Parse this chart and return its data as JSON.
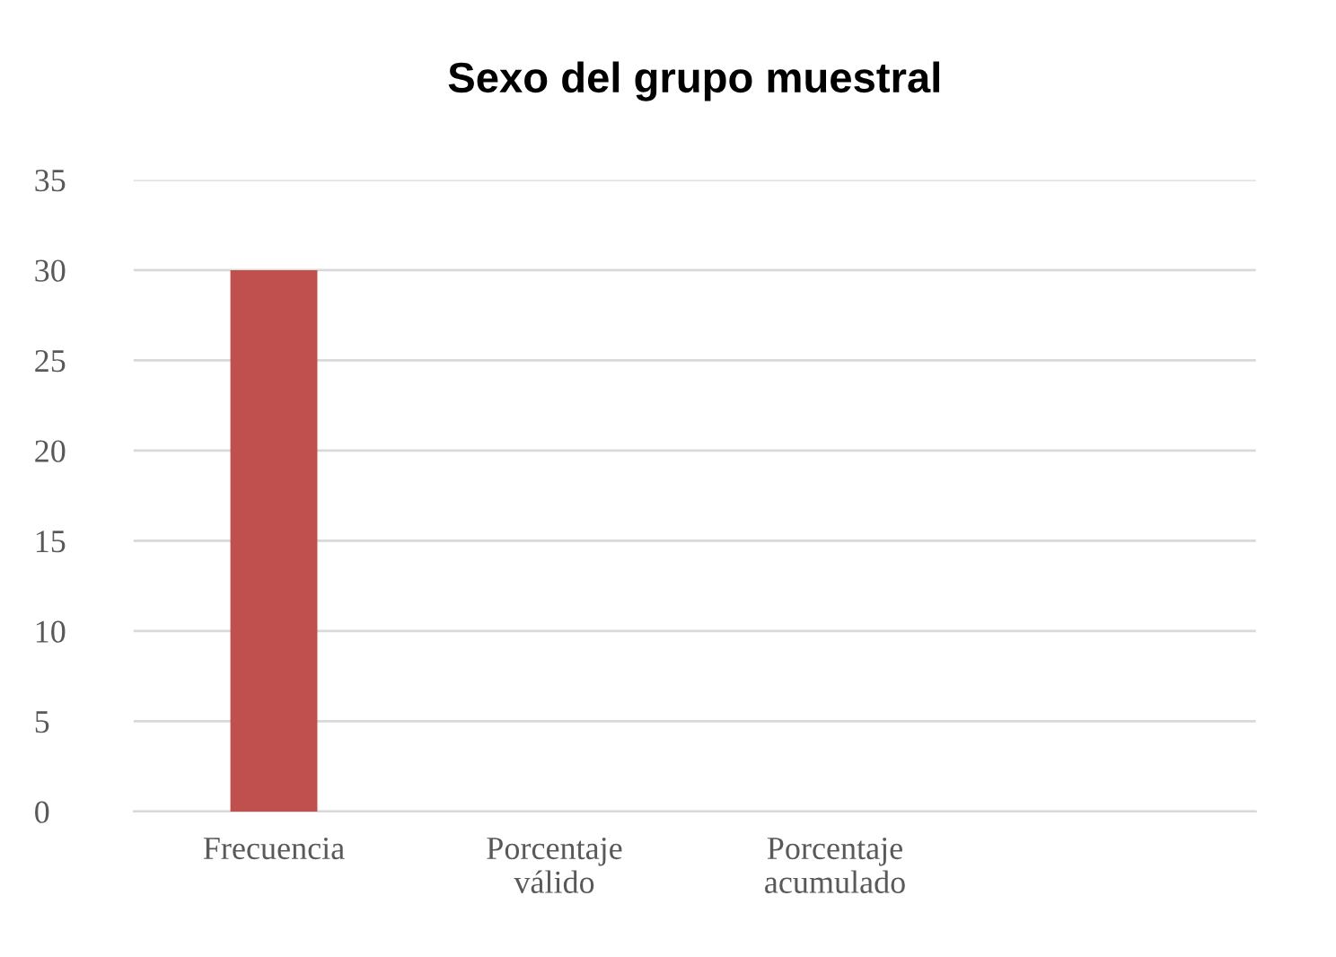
{
  "chart_data": {
    "type": "bar",
    "title": "Sexo del grupo muestral",
    "categories": [
      "Frecuencia",
      "Porcentaje\nválido",
      "Porcentaje\nacumulado",
      null
    ],
    "values": [
      30,
      null,
      null,
      null
    ],
    "color": "#c0504d",
    "ylim": [
      0,
      35
    ],
    "yticks": [
      0,
      5,
      10,
      15,
      20,
      25,
      30,
      35
    ],
    "grid": "y",
    "legend": false
  }
}
